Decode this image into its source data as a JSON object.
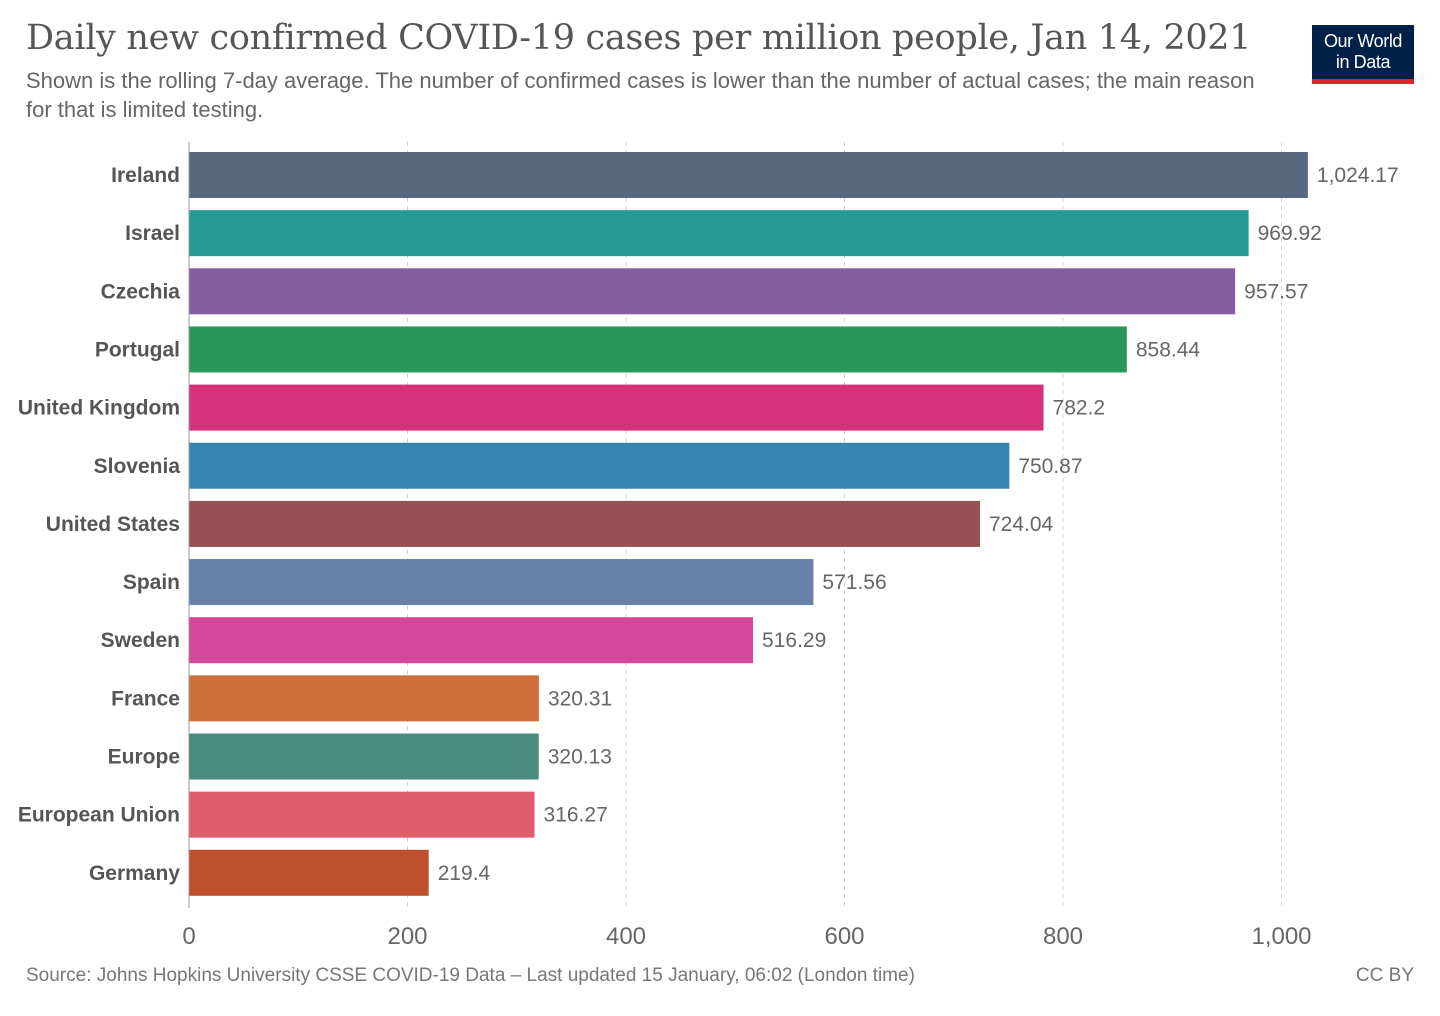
{
  "header": {
    "title": "Daily new confirmed COVID-19 cases per million people, Jan 14, 2021",
    "subtitle": "Shown is the rolling 7-day average. The number of confirmed cases is lower than the number of actual cases; the main reason for that is limited testing.",
    "logo_line1": "Our World",
    "logo_line2": "in Data",
    "logo_bg_color": "#002147",
    "logo_accent_color": "#dc2626"
  },
  "chart_data": {
    "type": "bar",
    "orientation": "horizontal",
    "title": "Daily new confirmed COVID-19 cases per million people, Jan 14, 2021",
    "xlabel": "",
    "ylabel": "",
    "xlim": [
      0,
      1024.17
    ],
    "x_ticks": [
      0,
      200,
      400,
      600,
      800,
      1000
    ],
    "x_tick_labels": [
      "0",
      "200",
      "400",
      "600",
      "800",
      "1,000"
    ],
    "grid": "vertical dashed",
    "legend": "none",
    "categories": [
      "Ireland",
      "Israel",
      "Czechia",
      "Portugal",
      "United Kingdom",
      "Slovenia",
      "United States",
      "Spain",
      "Sweden",
      "France",
      "Europe",
      "European Union",
      "Germany"
    ],
    "values": [
      1024.17,
      969.92,
      957.57,
      858.44,
      782.2,
      750.87,
      724.04,
      571.56,
      516.29,
      320.31,
      320.13,
      316.27,
      219.4
    ],
    "value_labels": [
      "1,024.17",
      "969.92",
      "957.57",
      "858.44",
      "782.2",
      "750.87",
      "724.04",
      "571.56",
      "516.29",
      "320.31",
      "320.13",
      "316.27",
      "219.4"
    ],
    "colors": [
      "#58687e",
      "#259a92",
      "#855ca0",
      "#2a9659",
      "#d6317b",
      "#3486b0",
      "#975053",
      "#6781ab",
      "#d5479a",
      "#cd703a",
      "#4a8b7d",
      "#df5e6c",
      "#bd512e"
    ]
  },
  "footer": {
    "source": "Source: Johns Hopkins University CSSE COVID-19 Data – Last updated 15 January, 06:02 (London time)",
    "license": "CC BY"
  }
}
